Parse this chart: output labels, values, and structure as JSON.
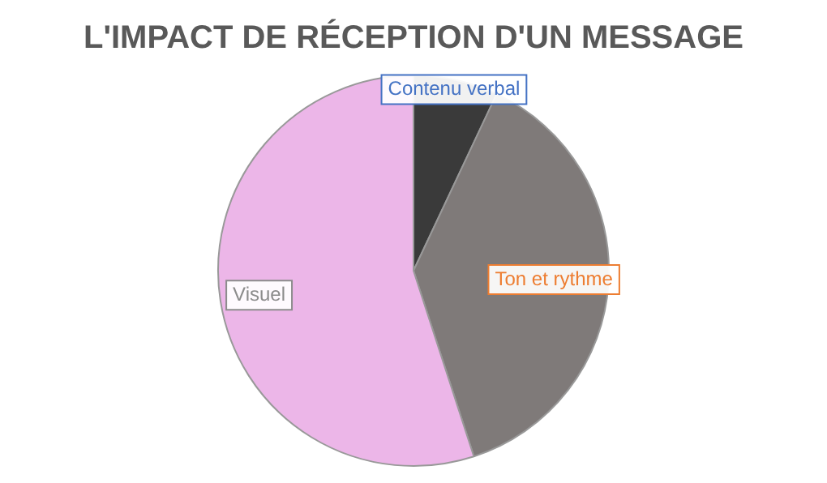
{
  "chart_data": {
    "type": "pie",
    "title": "L'IMPACT DE RÉCEPTION D'UN MESSAGE",
    "categories": [
      "Contenu verbal",
      "Ton et rythme",
      "Visuel"
    ],
    "values": [
      7,
      38,
      55
    ],
    "colors": [
      "#3a3a3a",
      "#7f7a79",
      "#ecb6e8"
    ],
    "legend": false
  }
}
